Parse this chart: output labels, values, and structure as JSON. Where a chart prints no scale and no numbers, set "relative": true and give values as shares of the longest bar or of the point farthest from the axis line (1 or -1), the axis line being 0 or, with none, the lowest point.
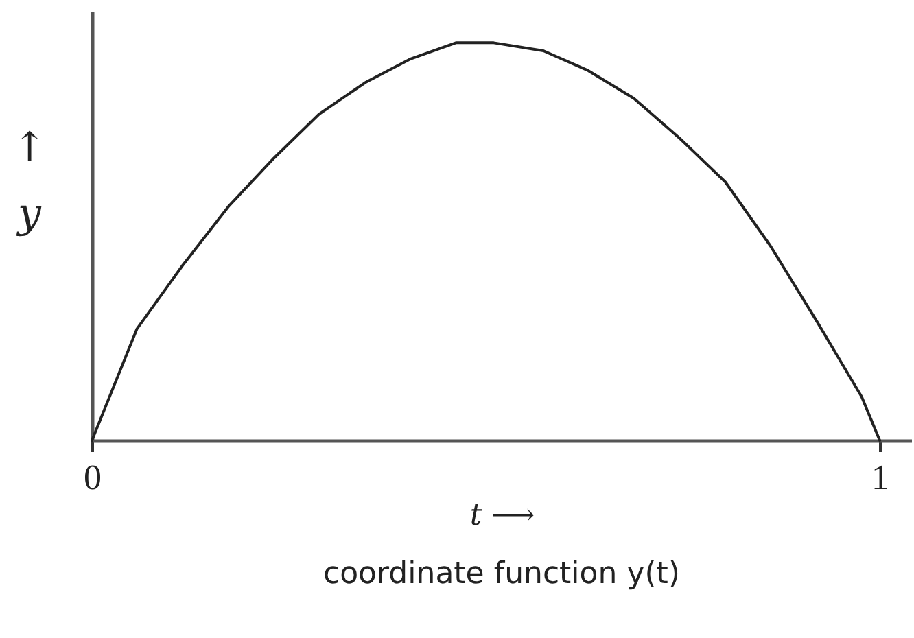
{
  "chart_data": {
    "type": "line",
    "relative": true,
    "xlabel": "t ⟶",
    "ylabel": "↑ y",
    "annotations": [
      "coordinate function y(t)"
    ],
    "xlim": [
      0,
      1.04
    ],
    "xticks": [
      0,
      1
    ],
    "line_style": "solid",
    "series": [
      {
        "color": "#222222",
        "x": [
          0,
          0.057,
          0.115,
          0.174,
          0.231,
          0.288,
          0.347,
          0.405,
          0.462,
          0.51,
          0.573,
          0.63,
          0.688,
          0.746,
          0.804,
          0.861,
          0.92,
          0.977,
          1
        ],
        "values": [
          0,
          0.28,
          0.44,
          0.59,
          0.71,
          0.82,
          0.9,
          0.96,
          1,
          1,
          0.98,
          0.93,
          0.86,
          0.76,
          0.65,
          0.49,
          0.3,
          0.11,
          0
        ]
      }
    ]
  }
}
